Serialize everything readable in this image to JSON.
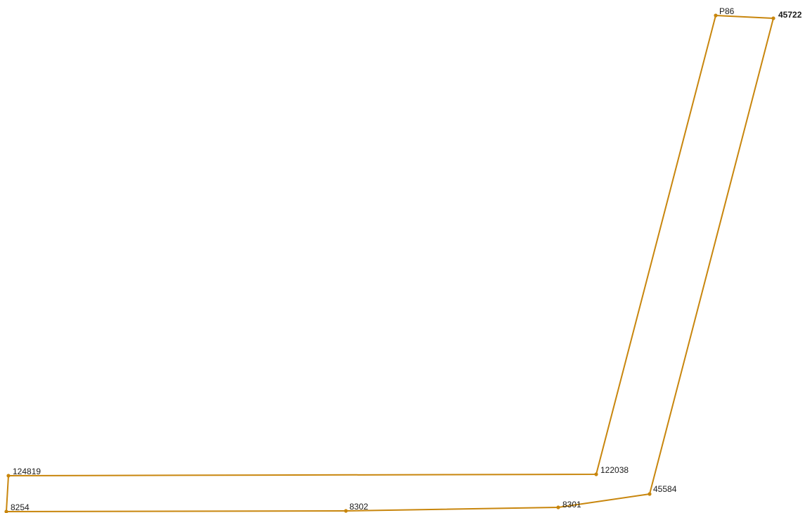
{
  "map": {
    "style": {
      "outline_color": "#c8860d",
      "point_color": "#c8860d",
      "label_color": "#1a1a1a"
    },
    "parcel_boundary": {
      "vertices": [
        {
          "id": "P86",
          "label": "P86"
        },
        {
          "id": "45722",
          "label": "45722",
          "emphasis": "bold"
        },
        {
          "id": "45584",
          "label": "45584"
        },
        {
          "id": "8301",
          "label": "8301"
        },
        {
          "id": "8302",
          "label": "8302"
        },
        {
          "id": "8254",
          "label": "8254"
        },
        {
          "id": "124819",
          "label": "124819"
        },
        {
          "id": "122038",
          "label": "122038"
        }
      ]
    }
  }
}
